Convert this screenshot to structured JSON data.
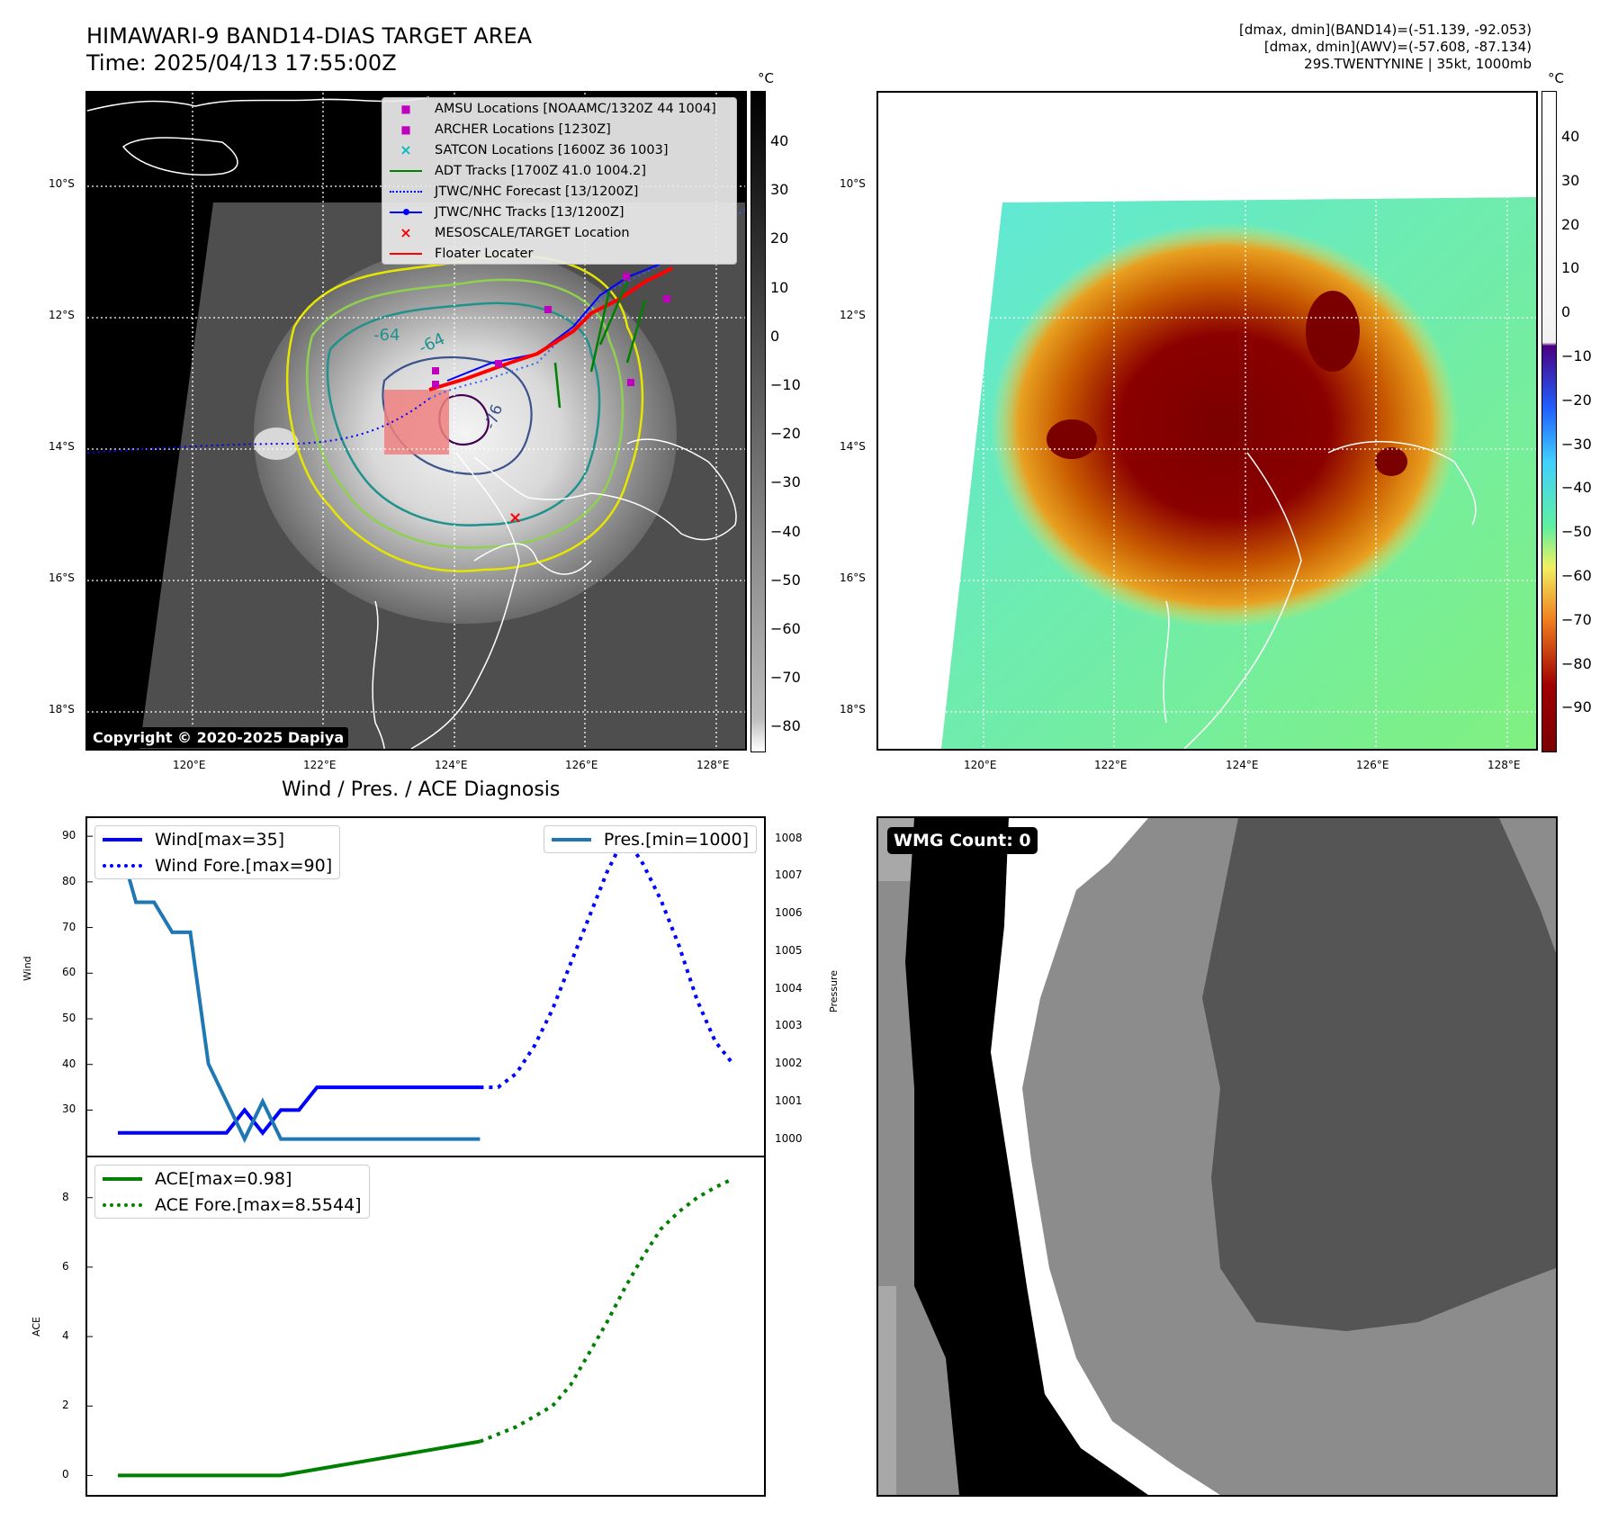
{
  "header": {
    "title": "HIMAWARI-9 BAND14-DIAS TARGET AREA",
    "time": "Time: 2025/04/13 17:55:00Z",
    "stats_line1": "[dmax, dmin](BAND14)=(-51.139, -92.053)",
    "stats_line2": "[dmax, dmin](AWV)=(-57.608, -87.134)",
    "stats_line3": "29S.TWENTYNINE | 35kt, 1000mb"
  },
  "map": {
    "lat_labels": [
      "10°S",
      "12°S",
      "14°S",
      "16°S",
      "18°S"
    ],
    "lon_labels": [
      "120°E",
      "122°E",
      "124°E",
      "126°E",
      "128°E"
    ],
    "contour_labels": [
      "-64",
      "-64",
      "-76"
    ],
    "copyright": "Copyright © 2020-2025 Dapiya",
    "colorbar_unit": "°C",
    "colorbar_ticks": [
      "40",
      "30",
      "20",
      "10",
      "0",
      "−10",
      "−20",
      "−30",
      "−40",
      "−50",
      "−60",
      "−70",
      "−80"
    ],
    "legend": [
      {
        "label": "AMSU Locations [NOAAMC/1320Z 44 1004]",
        "color": "#bf00bf",
        "symbol": "■"
      },
      {
        "label": "ARCHER Locations [1230Z]",
        "color": "#bf00bf",
        "symbol": "■"
      },
      {
        "label": "SATCON Locations [1600Z 36 1003]",
        "color": "#00bfbf",
        "symbol": "×"
      },
      {
        "label": "ADT Tracks [1700Z 41.0 1004.2]",
        "color": "#008000",
        "symbol": "line"
      },
      {
        "label": "JTWC/NHC Forecast [13/1200Z]",
        "color": "#0000ff",
        "symbol": "dotted"
      },
      {
        "label": "JTWC/NHC Tracks [13/1200Z]",
        "color": "#0000ff",
        "symbol": "line-dot"
      },
      {
        "label": "MESOSCALE/TARGET Location",
        "color": "#ff0000",
        "symbol": "×"
      },
      {
        "label": "Floater Locater",
        "color": "#ff0000",
        "symbol": "line"
      }
    ]
  },
  "awv": {
    "colorbar_unit": "°C",
    "colorbar_ticks": [
      "40",
      "30",
      "20",
      "10",
      "0",
      "−10",
      "−20",
      "−30",
      "−40",
      "−50",
      "−60",
      "−70",
      "−80",
      "−90"
    ]
  },
  "wmg": {
    "badge": "WMG Count: 0"
  },
  "chart_data": [
    {
      "type": "line",
      "title": "Wind / Pres. / ACE Diagnosis",
      "ylabel": "Wind",
      "y2label": "Pressure",
      "ylim": [
        22,
        92
      ],
      "y2lim": [
        999.8,
        1008.3
      ],
      "y_ticks": [
        30,
        40,
        50,
        60,
        70,
        80,
        90
      ],
      "y2_ticks": [
        1000,
        1001,
        1002,
        1003,
        1004,
        1005,
        1006,
        1007,
        1008
      ],
      "x_range": [
        0,
        34
      ],
      "series": [
        {
          "name": "Wind[max=35]",
          "color": "#0000ff",
          "style": "solid",
          "x": [
            0,
            6,
            7,
            8,
            9,
            10,
            11,
            12,
            13,
            14,
            20
          ],
          "values": [
            25,
            25,
            30,
            25,
            30,
            30,
            35,
            35,
            35,
            35,
            35
          ]
        },
        {
          "name": "Wind Fore.[max=90]",
          "color": "#0000ff",
          "style": "dotted",
          "x": [
            20,
            21,
            22,
            23,
            24,
            25,
            26,
            27,
            28,
            29,
            30,
            31,
            32,
            33,
            34
          ],
          "values": [
            35,
            35,
            38,
            44,
            52,
            62,
            72,
            82,
            90,
            84,
            76,
            66,
            54,
            45,
            40
          ]
        },
        {
          "name": "Pres.[min=1000]",
          "color": "#1f77b4",
          "style": "solid",
          "axis": "right",
          "x": [
            0,
            1,
            2,
            3,
            4,
            5,
            6,
            7,
            8,
            9,
            10,
            11,
            12,
            13,
            14,
            20
          ],
          "values": [
            1008,
            1006.3,
            1006.3,
            1005.5,
            1005.5,
            1002,
            1001,
            1000,
            1001,
            1000,
            1000,
            1000,
            1000,
            1000,
            1000,
            1000
          ]
        }
      ]
    },
    {
      "type": "line",
      "ylabel": "ACE",
      "ylim": [
        -0.3,
        8.9
      ],
      "y_ticks": [
        0,
        2,
        4,
        6,
        8
      ],
      "x_range": [
        0,
        34
      ],
      "series": [
        {
          "name": "ACE[max=0.98]",
          "color": "#008000",
          "style": "solid",
          "x": [
            0,
            9,
            20
          ],
          "values": [
            0,
            0,
            0.98
          ]
        },
        {
          "name": "ACE Fore.[max=8.5544]",
          "color": "#008000",
          "style": "dotted",
          "x": [
            20,
            22,
            24,
            25,
            26,
            27,
            28,
            29,
            30,
            31,
            32,
            33,
            34
          ],
          "values": [
            0.98,
            1.4,
            2.0,
            2.6,
            3.5,
            4.4,
            5.4,
            6.3,
            7.1,
            7.6,
            8.0,
            8.3,
            8.55
          ]
        }
      ]
    }
  ]
}
